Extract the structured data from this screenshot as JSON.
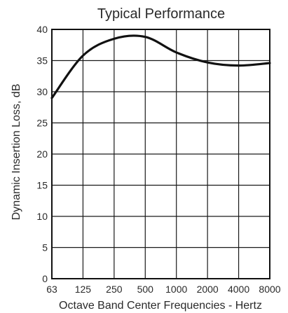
{
  "chart_data": {
    "type": "line",
    "title": "Typical Performance",
    "xlabel": "Octave Band Center Frequencies - Hertz",
    "ylabel": "Dynamic Insertion Loss, dB",
    "categories": [
      "63",
      "125",
      "250",
      "500",
      "1000",
      "2000",
      "4000",
      "8000"
    ],
    "yticks": [
      "0",
      "5",
      "10",
      "15",
      "20",
      "25",
      "30",
      "35",
      "40"
    ],
    "ylim": [
      0,
      40
    ],
    "grid": true,
    "series": [
      {
        "x": [
          "63",
          "125",
          "250",
          "500",
          "1000",
          "2000",
          "4000",
          "8000"
        ],
        "values": [
          29,
          35.8,
          38.5,
          38.8,
          36.3,
          34.7,
          34.2,
          34.6
        ]
      }
    ],
    "colors": {
      "line": "#111111",
      "grid": "#1a1a1a",
      "text": "#2a2a2a"
    }
  }
}
